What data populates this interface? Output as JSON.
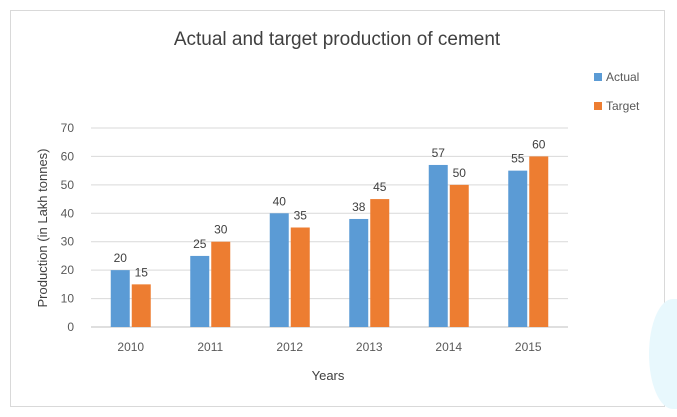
{
  "chart_data": {
    "type": "bar",
    "title": "Actual and target production  of cement",
    "xlabel": "Years",
    "ylabel": "Production (in Lakh tonnes)",
    "categories": [
      "2010",
      "2011",
      "2012",
      "2013",
      "2014",
      "2015"
    ],
    "series": [
      {
        "name": "Actual",
        "color": "#5b9bd5",
        "values": [
          20,
          25,
          40,
          38,
          57,
          55
        ]
      },
      {
        "name": "Target",
        "color": "#ed7d31",
        "values": [
          15,
          30,
          35,
          45,
          50,
          60
        ]
      }
    ],
    "ylim": [
      0,
      70
    ],
    "yticks": [
      0,
      10,
      20,
      30,
      40,
      50,
      60,
      70
    ],
    "grid": true,
    "legend_position": "right",
    "data_labels": true
  }
}
